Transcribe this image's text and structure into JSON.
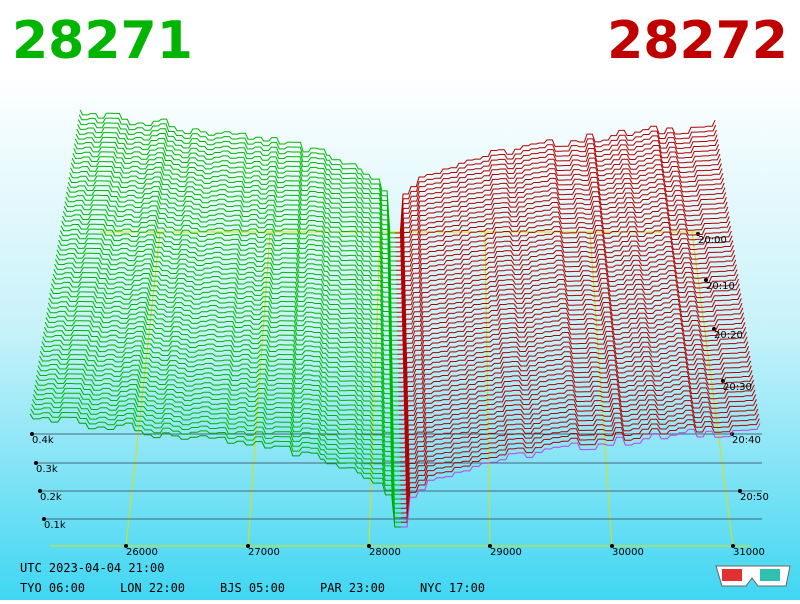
{
  "header": {
    "bid": "28271",
    "ask": "28272"
  },
  "x_axis": {
    "labels": [
      "26000",
      "27000",
      "28000",
      "29000",
      "30000",
      "31000"
    ]
  },
  "volume_axis": {
    "labels": [
      "0.1k",
      "0.2k",
      "0.3k",
      "0.4k"
    ]
  },
  "time_axis": {
    "labels": [
      "20:00",
      "20:10",
      "20:20",
      "20:30",
      "20:40",
      "20:50"
    ]
  },
  "footer": {
    "utc": "UTC 2023-04-04 21:00",
    "zones": [
      "TYO 06:00",
      "LON 22:00",
      "BJS 05:00",
      "PAR 23:00",
      "NYC 17:00"
    ]
  }
}
